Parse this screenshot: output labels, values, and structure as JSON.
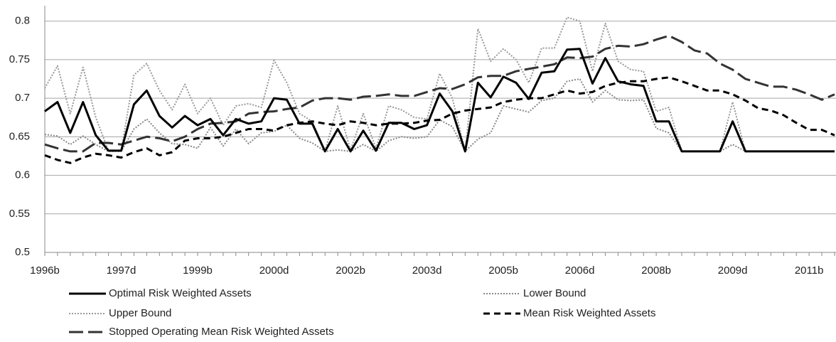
{
  "chart_data": {
    "type": "line",
    "categories": [
      "1996b",
      null,
      null,
      null,
      null,
      null,
      "1997d",
      null,
      null,
      null,
      null,
      null,
      "1999b",
      null,
      null,
      null,
      null,
      null,
      "2000d",
      null,
      null,
      null,
      null,
      null,
      "2002b",
      null,
      null,
      null,
      null,
      null,
      "2003d",
      null,
      null,
      null,
      null,
      null,
      "2005b",
      null,
      null,
      null,
      null,
      null,
      "2006d",
      null,
      null,
      null,
      null,
      null,
      "2008b",
      null,
      null,
      null,
      null,
      null,
      "2009d",
      null,
      null,
      null,
      null,
      null,
      "2011b",
      null,
      null
    ],
    "ylim": [
      0.5,
      0.82
    ],
    "yticks": [
      0.5,
      0.55,
      0.6,
      0.65,
      0.7,
      0.75,
      0.8
    ],
    "grid": true,
    "legend": "bottom",
    "series": [
      {
        "name": "Optimal Risk Weighted Assets",
        "color": "#000000",
        "style": "solid",
        "values": [
          0.683,
          0.695,
          0.655,
          0.695,
          0.652,
          0.632,
          0.632,
          0.692,
          0.71,
          0.677,
          0.662,
          0.677,
          0.665,
          0.673,
          0.652,
          0.673,
          0.667,
          0.67,
          0.7,
          0.698,
          0.667,
          0.667,
          0.631,
          0.66,
          0.631,
          0.658,
          0.632,
          0.668,
          0.668,
          0.66,
          0.665,
          0.706,
          0.683,
          0.631,
          0.72,
          0.701,
          0.728,
          0.72,
          0.699,
          0.733,
          0.735,
          0.763,
          0.764,
          0.719,
          0.752,
          0.722,
          0.718,
          0.716,
          0.67,
          0.67,
          0.631,
          0.631,
          0.631,
          0.631,
          0.67,
          0.631,
          0.631,
          0.631,
          0.631,
          0.631,
          0.631,
          0.631,
          0.631
        ]
      },
      {
        "name": "Lower Bound",
        "color": "#888888",
        "style": "dotted",
        "values": [
          0.653,
          0.651,
          0.64,
          0.651,
          0.64,
          0.631,
          0.631,
          0.66,
          0.673,
          0.655,
          0.641,
          0.64,
          0.635,
          0.662,
          0.638,
          0.66,
          0.641,
          0.655,
          0.657,
          0.665,
          0.648,
          0.642,
          0.631,
          0.633,
          0.631,
          0.64,
          0.631,
          0.645,
          0.65,
          0.648,
          0.65,
          0.672,
          0.663,
          0.631,
          0.647,
          0.655,
          0.69,
          0.686,
          0.682,
          0.697,
          0.7,
          0.722,
          0.725,
          0.695,
          0.71,
          0.698,
          0.697,
          0.698,
          0.661,
          0.655,
          0.631,
          0.631,
          0.631,
          0.631,
          0.64,
          0.631,
          0.631,
          0.631,
          0.631,
          0.631,
          0.631,
          0.631,
          0.631
        ]
      },
      {
        "name": "Upper Bound",
        "color": "#999999",
        "style": "dotted",
        "values": [
          0.713,
          0.742,
          0.68,
          0.74,
          0.675,
          0.632,
          0.632,
          0.73,
          0.745,
          0.71,
          0.685,
          0.718,
          0.68,
          0.7,
          0.665,
          0.69,
          0.693,
          0.688,
          0.749,
          0.72,
          0.68,
          0.67,
          0.631,
          0.69,
          0.633,
          0.68,
          0.635,
          0.69,
          0.685,
          0.675,
          0.673,
          0.732,
          0.7,
          0.631,
          0.79,
          0.748,
          0.764,
          0.75,
          0.72,
          0.765,
          0.765,
          0.805,
          0.8,
          0.735,
          0.797,
          0.748,
          0.737,
          0.735,
          0.683,
          0.688,
          0.631,
          0.631,
          0.631,
          0.631,
          0.695,
          0.631,
          0.631,
          0.631,
          0.631,
          0.631,
          0.631,
          0.631,
          0.631
        ]
      },
      {
        "name": "Mean Risk Weighted Assets",
        "color": "#000000",
        "style": "dashed",
        "values": [
          0.626,
          0.62,
          0.616,
          0.623,
          0.628,
          0.626,
          0.623,
          0.63,
          0.635,
          0.626,
          0.63,
          0.645,
          0.648,
          0.648,
          0.65,
          0.655,
          0.66,
          0.66,
          0.658,
          0.665,
          0.668,
          0.67,
          0.667,
          0.665,
          0.67,
          0.668,
          0.665,
          0.667,
          0.667,
          0.668,
          0.671,
          0.672,
          0.68,
          0.684,
          0.686,
          0.688,
          0.695,
          0.698,
          0.7,
          0.7,
          0.705,
          0.71,
          0.706,
          0.708,
          0.716,
          0.72,
          0.722,
          0.722,
          0.725,
          0.727,
          0.722,
          0.716,
          0.71,
          0.71,
          0.705,
          0.697,
          0.687,
          0.684,
          0.678,
          0.668,
          0.659,
          0.659,
          0.652
        ]
      },
      {
        "name": "Stopped Operating Mean Risk Weighted Assets",
        "color": "#333333",
        "style": "longdash",
        "values": [
          0.64,
          0.635,
          0.631,
          0.631,
          0.642,
          0.642,
          0.64,
          0.645,
          0.65,
          0.648,
          0.644,
          0.65,
          0.66,
          0.667,
          0.668,
          0.67,
          0.68,
          0.682,
          0.683,
          0.686,
          0.688,
          0.697,
          0.7,
          0.7,
          0.698,
          0.702,
          0.703,
          0.705,
          0.703,
          0.703,
          0.708,
          0.713,
          0.712,
          0.718,
          0.727,
          0.729,
          0.729,
          0.735,
          0.738,
          0.741,
          0.744,
          0.753,
          0.752,
          0.754,
          0.764,
          0.768,
          0.767,
          0.77,
          0.776,
          0.781,
          0.773,
          0.762,
          0.758,
          0.745,
          0.737,
          0.725,
          0.72,
          0.715,
          0.715,
          0.711,
          0.705,
          0.698,
          0.705
        ]
      }
    ]
  }
}
